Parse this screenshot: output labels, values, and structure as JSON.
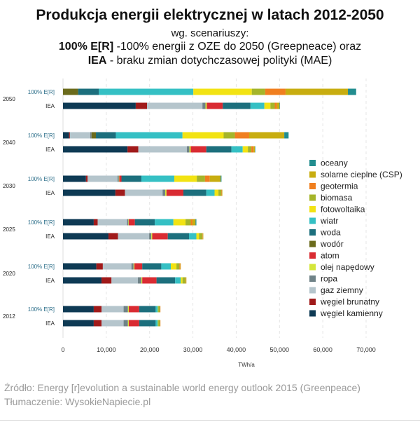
{
  "header": {
    "title": "Produkcja energii elektrycznej w latach 2012-2050",
    "subtitle": "wg. scenariuszy:",
    "line_er_bold": "100% E[R]",
    "line_er_rest": " -100% energii z OZE do 2050 (Greepneace) oraz",
    "line_iea_bold": "IEA",
    "line_iea_rest": " - braku zmian dotychczasowej polityki  (MAE)"
  },
  "footer": {
    "source": "Źródło: Energy [r]evolution a sustainable world energy outlook 2015 (Greenpeace)",
    "credit": "Tłumaczenie: WysokieNapiecie.pl"
  },
  "chart_data": {
    "type": "bar",
    "orientation": "horizontal",
    "stacked": true,
    "xlabel": "TWh/a",
    "xlim": [
      0,
      70000
    ],
    "xticks": [
      0,
      10000,
      20000,
      30000,
      40000,
      50000,
      60000,
      70000
    ],
    "xtick_labels": [
      "0",
      "10,000",
      "20,000",
      "30,000",
      "40,000",
      "50,000",
      "60,000",
      "70,000"
    ],
    "grid": "vertical dashed",
    "legend_position": "right",
    "years": [
      "2050",
      "2040",
      "2030",
      "2025",
      "2020",
      "2012"
    ],
    "scenario_labels": {
      "er": "100% E[R]",
      "iea": "IEA"
    },
    "series": [
      {
        "name": "węgiel kamienny",
        "color": "#0e3a54"
      },
      {
        "name": "węgiel brunatny",
        "color": "#a01a1a"
      },
      {
        "name": "gaz ziemny",
        "color": "#b5c5cc"
      },
      {
        "name": "ropa",
        "color": "#6f8287"
      },
      {
        "name": "olej napędowy",
        "color": "#d4e63a"
      },
      {
        "name": "atom",
        "color": "#d92b32"
      },
      {
        "name": "wodór",
        "color": "#6b6b1c"
      },
      {
        "name": "woda",
        "color": "#1c6f7d"
      },
      {
        "name": "wiatr",
        "color": "#35c0c4"
      },
      {
        "name": "fotowoltaika",
        "color": "#f2e313"
      },
      {
        "name": "biomasa",
        "color": "#a5b52a"
      },
      {
        "name": "geotermia",
        "color": "#f07f1f"
      },
      {
        "name": "solarne cieplne (CSP)",
        "color": "#c8ad10"
      },
      {
        "name": "oceany",
        "color": "#228d8f"
      }
    ],
    "legend_order": [
      "oceany",
      "solarne cieplne (CSP)",
      "geotermia",
      "biomasa",
      "fotowoltaika",
      "wiatr",
      "woda",
      "wodór",
      "atom",
      "olej napędowy",
      "ropa",
      "gaz ziemny",
      "węgiel brunatny",
      "węgiel kamienny"
    ],
    "bars": [
      {
        "year": "2050",
        "scenario": "er",
        "values": {
          "węgiel kamienny": 0,
          "węgiel brunatny": 0,
          "gaz ziemny": 0,
          "ropa": 0,
          "olej napędowy": 0,
          "atom": 0,
          "wodór": 3500,
          "woda": 4800,
          "wiatr": 21800,
          "fotowoltaika": 13500,
          "biomasa": 3100,
          "geotermia": 4700,
          "solarne cieplne (CSP)": 14400,
          "oceany": 1900
        }
      },
      {
        "year": "2050",
        "scenario": "iea",
        "values": {
          "węgiel kamienny": 16800,
          "węgiel brunatny": 2600,
          "gaz ziemny": 12800,
          "ropa": 700,
          "olej napędowy": 300,
          "atom": 3700,
          "wodór": 0,
          "woda": 6400,
          "wiatr": 3200,
          "fotowoltaika": 1400,
          "biomasa": 1000,
          "geotermia": 500,
          "solarne cieplne (CSP)": 600,
          "oceany": 100
        }
      },
      {
        "year": "2040",
        "scenario": "er",
        "values": {
          "węgiel kamienny": 1400,
          "węgiel brunatny": 200,
          "gaz ziemny": 4700,
          "ropa": 300,
          "olej napędowy": 0,
          "atom": 0,
          "wodór": 1000,
          "woda": 4600,
          "wiatr": 15400,
          "fotowoltaika": 9500,
          "biomasa": 2600,
          "geotermia": 3300,
          "solarne cieplne (CSP)": 8100,
          "oceany": 1000
        }
      },
      {
        "year": "2040",
        "scenario": "iea",
        "values": {
          "węgiel kamienny": 14900,
          "węgiel brunatny": 2500,
          "gaz ziemny": 11200,
          "ropa": 600,
          "olej napędowy": 300,
          "atom": 3600,
          "wodór": 0,
          "woda": 5800,
          "wiatr": 2600,
          "fotowoltaika": 1200,
          "biomasa": 800,
          "geotermia": 500,
          "solarne cieplne (CSP)": 300,
          "oceany": 100
        }
      },
      {
        "year": "2030",
        "scenario": "er",
        "values": {
          "węgiel kamienny": 5300,
          "węgiel brunatny": 400,
          "gaz ziemny": 6900,
          "ropa": 300,
          "olej napędowy": 100,
          "atom": 500,
          "wodór": 0,
          "woda": 4600,
          "wiatr": 7600,
          "fotowoltaika": 5200,
          "biomasa": 1900,
          "geotermia": 1100,
          "solarne cieplne (CSP)": 2500,
          "oceany": 200
        }
      },
      {
        "year": "2030",
        "scenario": "iea",
        "values": {
          "węgiel kamienny": 12100,
          "węgiel brunatny": 2200,
          "gaz ziemny": 8700,
          "ropa": 600,
          "olej napędowy": 300,
          "atom": 3900,
          "wodór": 0,
          "woda": 5300,
          "wiatr": 1900,
          "fotowoltaika": 900,
          "biomasa": 700,
          "geotermia": 100,
          "solarne cieplne (CSP)": 100,
          "oceany": 0
        }
      },
      {
        "year": "2025",
        "scenario": "er",
        "values": {
          "węgiel kamienny": 7100,
          "węgiel brunatny": 900,
          "gaz ziemny": 6800,
          "ropa": 300,
          "olej napędowy": 100,
          "atom": 1400,
          "wodór": 0,
          "woda": 4600,
          "wiatr": 4300,
          "fotowoltaika": 2800,
          "biomasa": 1200,
          "geotermia": 400,
          "solarne cieplne (CSP)": 700,
          "oceany": 200
        }
      },
      {
        "year": "2025",
        "scenario": "iea",
        "values": {
          "węgiel kamienny": 10500,
          "węgiel brunatny": 2200,
          "gaz ziemny": 7200,
          "ropa": 500,
          "olej napędowy": 200,
          "atom": 3600,
          "wodór": 0,
          "woda": 4900,
          "wiatr": 1700,
          "fotowoltaika": 600,
          "biomasa": 800,
          "geotermia": 100,
          "solarne cieplne (CSP)": 100,
          "oceany": 0
        }
      },
      {
        "year": "2020",
        "scenario": "er",
        "values": {
          "węgiel kamienny": 7700,
          "węgiel brunatny": 1500,
          "gaz ziemny": 6600,
          "ropa": 500,
          "olej napędowy": 200,
          "atom": 1800,
          "wodór": 0,
          "woda": 4400,
          "wiatr": 2200,
          "fotowoltaika": 1300,
          "biomasa": 700,
          "geotermia": 200,
          "solarne cieplne (CSP)": 100,
          "oceany": 0
        }
      },
      {
        "year": "2020",
        "scenario": "iea",
        "values": {
          "węgiel kamienny": 8900,
          "węgiel brunatny": 2300,
          "gaz ziemny": 6100,
          "ropa": 800,
          "olej napędowy": 200,
          "atom": 3300,
          "wodór": 0,
          "woda": 4300,
          "wiatr": 1300,
          "fotowoltaika": 400,
          "biomasa": 700,
          "geotermia": 100,
          "solarne cieplne (CSP)": 100,
          "oceany": 0
        }
      },
      {
        "year": "2012",
        "scenario": "er",
        "values": {
          "węgiel kamienny": 7100,
          "węgiel brunatny": 1800,
          "gaz ziemny": 5100,
          "ropa": 1000,
          "olej napędowy": 200,
          "atom": 2400,
          "wodór": 0,
          "woda": 3800,
          "wiatr": 500,
          "fotowoltaika": 100,
          "biomasa": 400,
          "geotermia": 100,
          "solarne cieplne (CSP)": 0,
          "oceany": 0
        }
      },
      {
        "year": "2012",
        "scenario": "iea",
        "values": {
          "węgiel kamienny": 7100,
          "węgiel brunatny": 1800,
          "gaz ziemny": 5100,
          "ropa": 1000,
          "olej napędowy": 200,
          "atom": 2400,
          "wodór": 0,
          "woda": 3800,
          "wiatr": 500,
          "fotowoltaika": 100,
          "biomasa": 400,
          "geotermia": 100,
          "solarne cieplne (CSP)": 0,
          "oceany": 0
        }
      }
    ]
  }
}
